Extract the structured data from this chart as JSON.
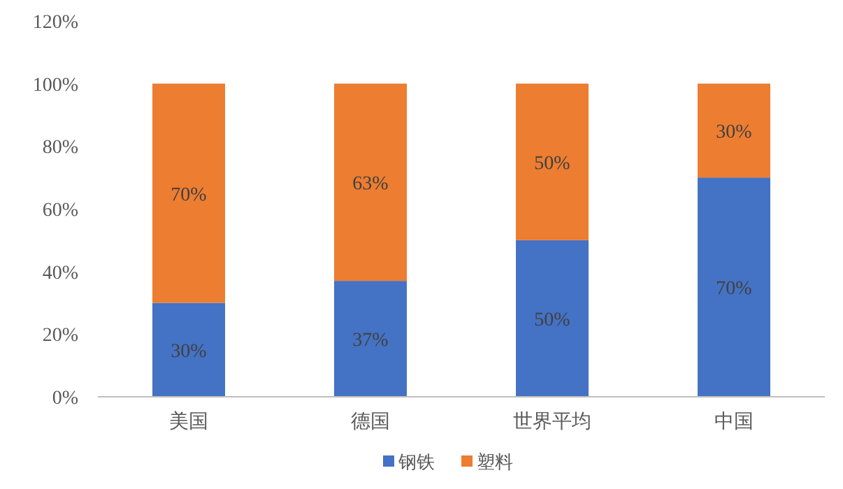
{
  "chart_data": {
    "type": "bar",
    "stacked": true,
    "categories": [
      "美国",
      "德国",
      "世界平均",
      "中国"
    ],
    "series": [
      {
        "name": "钢铁",
        "color": "#4472c4",
        "values": [
          30,
          37,
          50,
          70
        ],
        "value_labels": [
          "30%",
          "37%",
          "50%",
          "70%"
        ]
      },
      {
        "name": "塑料",
        "color": "#ed7d31",
        "values": [
          70,
          63,
          50,
          30
        ],
        "value_labels": [
          "70%",
          "63%",
          "50%",
          "30%"
        ]
      }
    ],
    "ylim": [
      0,
      120
    ],
    "yticks": [
      {
        "value": 0,
        "label": "0%"
      },
      {
        "value": 20,
        "label": "20%"
      },
      {
        "value": 40,
        "label": "40%"
      },
      {
        "value": 60,
        "label": "60%"
      },
      {
        "value": 80,
        "label": "80%"
      },
      {
        "value": 100,
        "label": "100%"
      },
      {
        "value": 120,
        "label": "120%"
      }
    ],
    "grid": false,
    "legend": "bottom"
  }
}
